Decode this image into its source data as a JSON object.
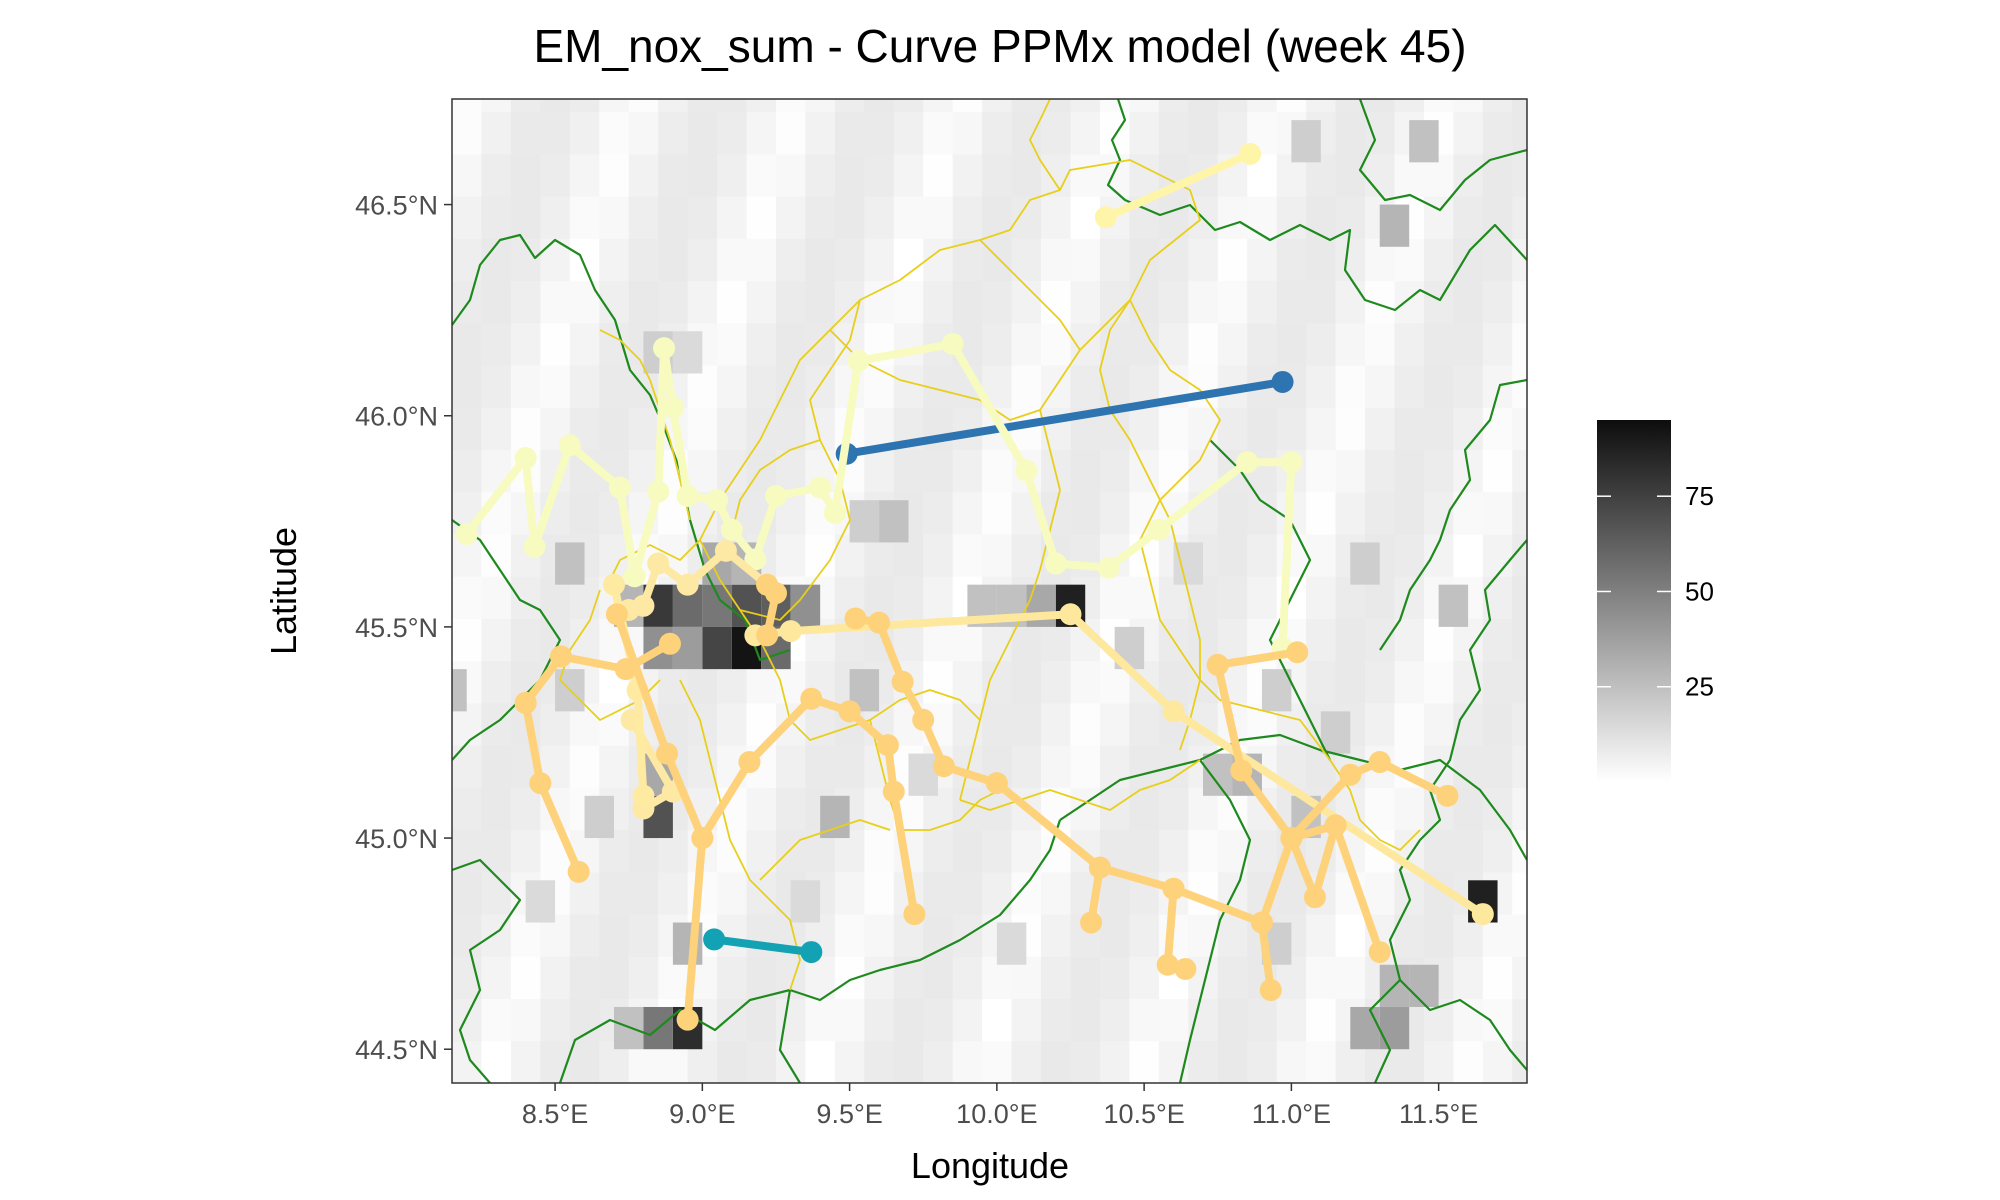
{
  "chart_data": {
    "type": "map",
    "title": "EM_nox_sum - Curve PPMx model (week 45)",
    "xlabel": "Longitude",
    "ylabel": "Latitude",
    "xlim": [
      8.15,
      11.8
    ],
    "ylim": [
      44.42,
      46.75
    ],
    "x_ticks": [
      8.5,
      9.0,
      9.5,
      10.0,
      10.5,
      11.0,
      11.5
    ],
    "x_tick_labels": [
      "8.5°E",
      "9.0°E",
      "9.5°E",
      "10.0°E",
      "10.5°E",
      "11.0°E",
      "11.5°E"
    ],
    "y_ticks": [
      44.5,
      45.0,
      45.5,
      46.0,
      46.5
    ],
    "y_tick_labels": [
      "44.5°N",
      "45.0°N",
      "45.5°N",
      "46.0°N",
      "46.5°N"
    ],
    "raster": {
      "description_of_fill": "EM_nox_sum grayscale",
      "colorbar_ticks": [
        25,
        50,
        75
      ],
      "colorbar_range": [
        0,
        95
      ],
      "cell_size_deg": [
        0.1,
        0.1
      ],
      "cells": [
        [
          8.85,
          45.55,
          80
        ],
        [
          8.95,
          45.55,
          60
        ],
        [
          9.05,
          45.55,
          55
        ],
        [
          9.15,
          45.55,
          70
        ],
        [
          9.15,
          45.45,
          95
        ],
        [
          9.05,
          45.45,
          75
        ],
        [
          9.25,
          45.45,
          60
        ],
        [
          9.25,
          45.55,
          65
        ],
        [
          8.85,
          45.45,
          45
        ],
        [
          8.95,
          45.45,
          40
        ],
        [
          9.35,
          45.55,
          45
        ],
        [
          9.05,
          45.65,
          35
        ],
        [
          8.75,
          45.55,
          30
        ],
        [
          9.15,
          45.65,
          30
        ],
        [
          8.85,
          45.05,
          70
        ],
        [
          8.85,
          45.15,
          35
        ],
        [
          8.95,
          44.55,
          85
        ],
        [
          8.85,
          44.55,
          55
        ],
        [
          8.75,
          44.55,
          25
        ],
        [
          9.45,
          45.05,
          30
        ],
        [
          9.55,
          45.35,
          25
        ],
        [
          10.25,
          45.55,
          90
        ],
        [
          10.15,
          45.55,
          35
        ],
        [
          9.95,
          45.55,
          25
        ],
        [
          10.05,
          45.55,
          25
        ],
        [
          10.85,
          45.15,
          30
        ],
        [
          10.75,
          45.15,
          25
        ],
        [
          11.65,
          44.85,
          90
        ],
        [
          11.55,
          45.55,
          25
        ],
        [
          11.35,
          44.55,
          40
        ],
        [
          11.25,
          44.55,
          35
        ],
        [
          11.45,
          44.65,
          30
        ],
        [
          11.35,
          44.65,
          30
        ],
        [
          11.35,
          46.45,
          30
        ],
        [
          11.45,
          46.65,
          25
        ],
        [
          11.05,
          46.65,
          20
        ],
        [
          8.85,
          46.15,
          20
        ],
        [
          8.95,
          46.15,
          15
        ],
        [
          8.15,
          45.35,
          25
        ],
        [
          8.55,
          45.65,
          25
        ],
        [
          8.95,
          44.75,
          30
        ],
        [
          10.95,
          45.35,
          20
        ],
        [
          11.15,
          45.25,
          20
        ],
        [
          9.65,
          45.75,
          25
        ],
        [
          9.55,
          45.75,
          20
        ],
        [
          8.55,
          45.35,
          20
        ],
        [
          8.65,
          45.05,
          20
        ],
        [
          9.75,
          45.15,
          15
        ],
        [
          10.45,
          45.45,
          20
        ],
        [
          10.65,
          45.65,
          15
        ],
        [
          11.25,
          45.65,
          20
        ],
        [
          11.05,
          45.05,
          25
        ],
        [
          10.95,
          44.75,
          20
        ],
        [
          10.05,
          44.75,
          15
        ],
        [
          8.45,
          44.85,
          15
        ],
        [
          9.35,
          44.85,
          15
        ]
      ]
    },
    "series": [
      {
        "color": "#2e74b0",
        "points": [
          [
            9.49,
            45.91
          ],
          [
            10.97,
            46.08
          ]
        ]
      },
      {
        "color": "#12a2b3",
        "points": [
          [
            9.04,
            44.76
          ],
          [
            9.37,
            44.73
          ]
        ]
      },
      {
        "color": "#fff5a8",
        "points": [
          [
            10.37,
            46.47
          ],
          [
            10.86,
            46.62
          ]
        ]
      },
      {
        "color": "#f7fbc0",
        "points": [
          [
            8.2,
            45.72
          ],
          [
            8.4,
            45.9
          ],
          [
            8.43,
            45.69
          ],
          [
            8.55,
            45.93
          ],
          [
            8.72,
            45.83
          ],
          [
            8.77,
            45.62
          ],
          [
            8.85,
            45.82
          ],
          [
            8.87,
            46.16
          ],
          [
            8.9,
            46.02
          ],
          [
            8.95,
            45.81
          ],
          [
            9.05,
            45.8
          ],
          [
            9.1,
            45.73
          ],
          [
            9.18,
            45.66
          ],
          [
            9.25,
            45.81
          ],
          [
            9.4,
            45.83
          ],
          [
            9.45,
            45.77
          ],
          [
            9.53,
            46.13
          ],
          [
            9.85,
            46.17
          ],
          [
            10.1,
            45.87
          ],
          [
            10.2,
            45.65
          ],
          [
            10.38,
            45.64
          ],
          [
            10.55,
            45.73
          ],
          [
            10.85,
            45.89
          ],
          [
            11.0,
            45.89
          ],
          [
            10.97,
            45.45
          ]
        ]
      },
      {
        "color": "#fde9a3",
        "points": [
          [
            8.75,
            45.54
          ],
          [
            8.8,
            45.55
          ],
          [
            8.85,
            45.65
          ],
          [
            8.95,
            45.6
          ],
          [
            9.08,
            45.68
          ],
          [
            9.22,
            45.6
          ]
        ]
      },
      {
        "color": "#fde9a3",
        "points": [
          [
            8.76,
            45.28
          ],
          [
            8.9,
            45.11
          ],
          [
            8.8,
            45.07
          ]
        ]
      },
      {
        "color": "#feeaa0",
        "points": [
          [
            8.7,
            45.6
          ],
          [
            8.78,
            45.35
          ],
          [
            8.8,
            45.1
          ]
        ]
      },
      {
        "color": "#fee89e",
        "points": [
          [
            9.18,
            45.48
          ],
          [
            9.3,
            45.49
          ],
          [
            10.25,
            45.53
          ],
          [
            10.6,
            45.3
          ],
          [
            11.65,
            44.82
          ]
        ]
      },
      {
        "color": "#fed27a",
        "points": [
          [
            8.4,
            45.32
          ],
          [
            8.45,
            45.13
          ],
          [
            8.58,
            44.92
          ]
        ]
      },
      {
        "color": "#fed27a",
        "points": [
          [
            8.4,
            45.32
          ],
          [
            8.52,
            45.43
          ],
          [
            8.74,
            45.4
          ],
          [
            8.89,
            45.46
          ]
        ]
      },
      {
        "color": "#fed27a",
        "points": [
          [
            8.71,
            45.53
          ],
          [
            8.88,
            45.2
          ],
          [
            9.0,
            45.0
          ],
          [
            8.95,
            44.57
          ]
        ]
      },
      {
        "color": "#fed27a",
        "points": [
          [
            9.0,
            45.0
          ],
          [
            9.16,
            45.18
          ],
          [
            9.37,
            45.33
          ],
          [
            9.5,
            45.3
          ]
        ]
      },
      {
        "color": "#fed27a",
        "points": [
          [
            9.5,
            45.3
          ],
          [
            9.63,
            45.22
          ],
          [
            9.65,
            45.11
          ],
          [
            9.72,
            44.82
          ]
        ]
      },
      {
        "color": "#fed27a",
        "points": [
          [
            9.52,
            45.52
          ],
          [
            9.6,
            45.51
          ],
          [
            9.68,
            45.37
          ],
          [
            9.75,
            45.28
          ],
          [
            9.82,
            45.17
          ],
          [
            10.0,
            45.13
          ],
          [
            10.35,
            44.93
          ],
          [
            10.6,
            44.88
          ],
          [
            10.9,
            44.8
          ],
          [
            11.0,
            45.0
          ],
          [
            11.15,
            45.03
          ],
          [
            11.3,
            44.73
          ]
        ]
      },
      {
        "color": "#fed27a",
        "points": [
          [
            10.35,
            44.93
          ],
          [
            10.32,
            44.8
          ]
        ]
      },
      {
        "color": "#fed27a",
        "points": [
          [
            10.6,
            44.88
          ],
          [
            10.58,
            44.7
          ],
          [
            10.64,
            44.69
          ]
        ]
      },
      {
        "color": "#fed27a",
        "points": [
          [
            10.9,
            44.8
          ],
          [
            10.93,
            44.64
          ]
        ]
      },
      {
        "color": "#fed27a",
        "points": [
          [
            10.75,
            45.41
          ],
          [
            10.83,
            45.16
          ],
          [
            11.0,
            45.0
          ],
          [
            11.2,
            45.15
          ],
          [
            11.3,
            45.18
          ],
          [
            11.53,
            45.1
          ]
        ]
      },
      {
        "color": "#fed27a",
        "points": [
          [
            10.75,
            45.41
          ],
          [
            11.02,
            45.44
          ]
        ]
      },
      {
        "color": "#fed27a",
        "points": [
          [
            11.0,
            45.0
          ],
          [
            11.08,
            44.86
          ],
          [
            11.15,
            45.03
          ]
        ]
      },
      {
        "color": "#fed27a",
        "points": [
          [
            9.22,
            45.6
          ],
          [
            9.25,
            45.58
          ],
          [
            9.22,
            45.48
          ]
        ]
      }
    ],
    "boundaries": {
      "green": "regional borders",
      "yellow": "provincial borders"
    }
  }
}
